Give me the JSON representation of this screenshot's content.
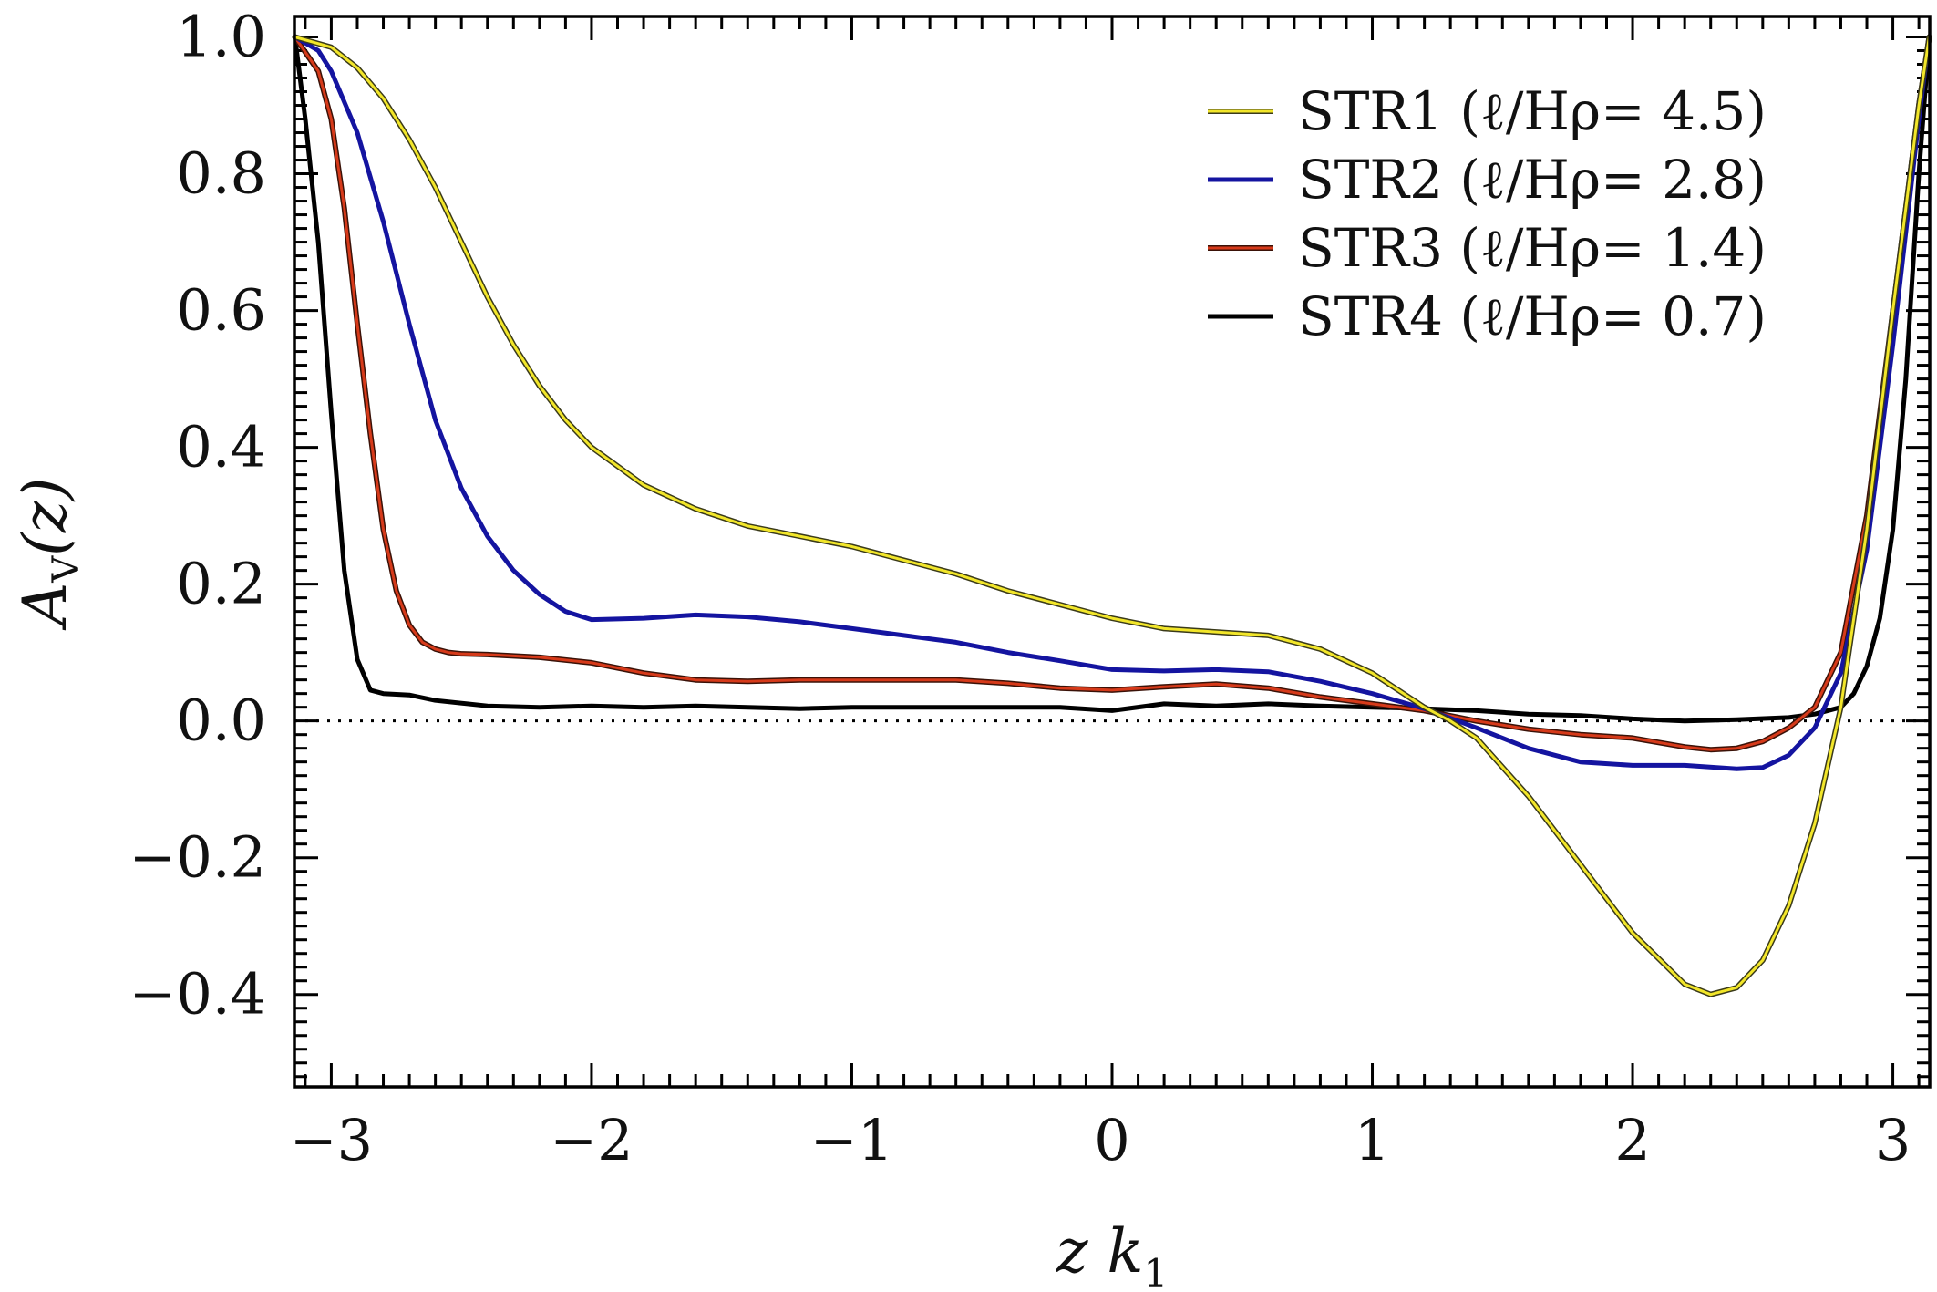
{
  "chart_data": {
    "type": "line",
    "title": "",
    "xlabel": "z  k1",
    "xlabel_parts": {
      "main": "z  k",
      "sub": "1"
    },
    "ylabel": "AV(z)",
    "ylabel_parts": {
      "main": "A",
      "sub": "V",
      "tail": "(z)"
    },
    "xlim": [
      -3.14159,
      3.14159
    ],
    "ylim": [
      -0.535,
      1.03
    ],
    "x_major_ticks": [
      -3,
      -2,
      -1,
      0,
      1,
      2,
      3
    ],
    "x_tick_labels": [
      "−3",
      "−2",
      "−1",
      "0",
      "1",
      "2",
      "3"
    ],
    "y_major_ticks": [
      1.0,
      0.8,
      0.6,
      0.4,
      0.2,
      0.0,
      -0.2,
      -0.4
    ],
    "y_tick_labels": [
      "1.0",
      "0.8",
      "0.6",
      "0.4",
      "0.2",
      "0.0",
      "−0.2",
      "−0.4"
    ],
    "reference_line": {
      "y": 0.0,
      "style": "dotted"
    },
    "legend_position": "top-right",
    "series": [
      {
        "name": "STR1",
        "legend_label": "STR1  (ℓ/Hρ=  4.5)",
        "color": "#f2e62a",
        "outline": "#3a3a1a",
        "x": [
          -3.14,
          -3.0,
          -2.9,
          -2.8,
          -2.7,
          -2.6,
          -2.5,
          -2.4,
          -2.3,
          -2.2,
          -2.1,
          -2.0,
          -1.8,
          -1.6,
          -1.4,
          -1.2,
          -1.0,
          -0.8,
          -0.6,
          -0.4,
          -0.2,
          0.0,
          0.2,
          0.4,
          0.6,
          0.8,
          1.0,
          1.2,
          1.3,
          1.4,
          1.6,
          1.8,
          2.0,
          2.2,
          2.3,
          2.4,
          2.5,
          2.6,
          2.7,
          2.8,
          2.9,
          3.0,
          3.1,
          3.14
        ],
        "y": [
          1.0,
          0.985,
          0.955,
          0.91,
          0.85,
          0.78,
          0.7,
          0.62,
          0.55,
          0.49,
          0.44,
          0.4,
          0.345,
          0.31,
          0.285,
          0.27,
          0.255,
          0.235,
          0.215,
          0.19,
          0.17,
          0.15,
          0.135,
          0.13,
          0.125,
          0.105,
          0.07,
          0.02,
          0.0,
          -0.025,
          -0.11,
          -0.21,
          -0.31,
          -0.385,
          -0.4,
          -0.39,
          -0.35,
          -0.27,
          -0.15,
          0.02,
          0.28,
          0.6,
          0.9,
          1.0
        ]
      },
      {
        "name": "STR2",
        "legend_label": "STR2  (ℓ/Hρ=  2.8)",
        "color": "#1414a0",
        "x": [
          -3.14,
          -3.05,
          -3.0,
          -2.9,
          -2.8,
          -2.7,
          -2.6,
          -2.5,
          -2.4,
          -2.3,
          -2.2,
          -2.1,
          -2.0,
          -1.8,
          -1.6,
          -1.4,
          -1.2,
          -1.0,
          -0.8,
          -0.6,
          -0.4,
          -0.2,
          0.0,
          0.2,
          0.4,
          0.6,
          0.8,
          1.0,
          1.2,
          1.4,
          1.6,
          1.8,
          2.0,
          2.2,
          2.4,
          2.5,
          2.6,
          2.7,
          2.8,
          2.9,
          3.0,
          3.1,
          3.14
        ],
        "y": [
          1.0,
          0.98,
          0.95,
          0.86,
          0.73,
          0.58,
          0.44,
          0.34,
          0.27,
          0.22,
          0.185,
          0.16,
          0.148,
          0.15,
          0.155,
          0.152,
          0.145,
          0.135,
          0.125,
          0.115,
          0.1,
          0.088,
          0.075,
          0.073,
          0.075,
          0.072,
          0.058,
          0.04,
          0.018,
          -0.01,
          -0.04,
          -0.06,
          -0.065,
          -0.065,
          -0.07,
          -0.068,
          -0.05,
          -0.01,
          0.07,
          0.25,
          0.55,
          0.88,
          1.0
        ]
      },
      {
        "name": "STR3",
        "legend_label": "STR3  (ℓ/Hρ=  1.4)",
        "color": "#d63a1a",
        "outline": "#3a1208",
        "x": [
          -3.14,
          -3.05,
          -3.0,
          -2.95,
          -2.9,
          -2.85,
          -2.8,
          -2.75,
          -2.7,
          -2.65,
          -2.6,
          -2.55,
          -2.5,
          -2.4,
          -2.2,
          -2.0,
          -1.8,
          -1.6,
          -1.4,
          -1.2,
          -1.0,
          -0.8,
          -0.6,
          -0.4,
          -0.2,
          0.0,
          0.2,
          0.4,
          0.6,
          0.8,
          1.0,
          1.2,
          1.4,
          1.6,
          1.8,
          2.0,
          2.2,
          2.3,
          2.4,
          2.5,
          2.6,
          2.7,
          2.8,
          2.9,
          3.0,
          3.1,
          3.14
        ],
        "y": [
          1.0,
          0.95,
          0.88,
          0.75,
          0.58,
          0.42,
          0.28,
          0.19,
          0.14,
          0.115,
          0.105,
          0.1,
          0.098,
          0.097,
          0.093,
          0.085,
          0.07,
          0.06,
          0.058,
          0.06,
          0.06,
          0.06,
          0.06,
          0.055,
          0.048,
          0.045,
          0.05,
          0.054,
          0.048,
          0.035,
          0.025,
          0.015,
          0.0,
          -0.012,
          -0.02,
          -0.025,
          -0.038,
          -0.042,
          -0.04,
          -0.03,
          -0.01,
          0.02,
          0.1,
          0.3,
          0.6,
          0.9,
          1.0
        ]
      },
      {
        "name": "STR4",
        "legend_label": "STR4  (ℓ/Hρ=  0.7)",
        "color": "#000000",
        "x": [
          -3.14,
          -3.1,
          -3.05,
          -3.0,
          -2.95,
          -2.9,
          -2.85,
          -2.8,
          -2.7,
          -2.6,
          -2.4,
          -2.2,
          -2.0,
          -1.8,
          -1.6,
          -1.4,
          -1.2,
          -1.0,
          -0.8,
          -0.6,
          -0.4,
          -0.2,
          0.0,
          0.2,
          0.4,
          0.6,
          0.8,
          1.0,
          1.2,
          1.4,
          1.6,
          1.8,
          2.0,
          2.2,
          2.4,
          2.6,
          2.7,
          2.8,
          2.85,
          2.9,
          2.95,
          3.0,
          3.05,
          3.1,
          3.14
        ],
        "y": [
          1.0,
          0.88,
          0.7,
          0.45,
          0.22,
          0.09,
          0.045,
          0.04,
          0.038,
          0.03,
          0.022,
          0.02,
          0.022,
          0.02,
          0.022,
          0.02,
          0.018,
          0.02,
          0.02,
          0.02,
          0.02,
          0.02,
          0.015,
          0.025,
          0.022,
          0.025,
          0.022,
          0.02,
          0.018,
          0.015,
          0.01,
          0.008,
          0.003,
          0.0,
          0.002,
          0.005,
          0.01,
          0.02,
          0.04,
          0.08,
          0.15,
          0.28,
          0.5,
          0.8,
          1.0
        ]
      }
    ]
  }
}
